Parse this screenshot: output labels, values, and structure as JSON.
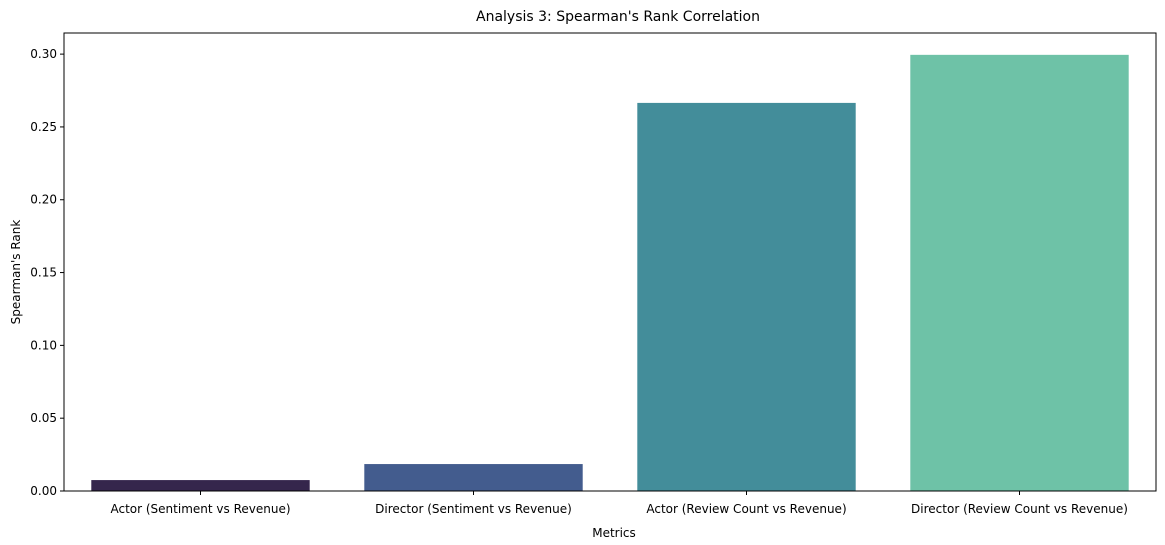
{
  "chart_data": {
    "type": "bar",
    "title": "Analysis 3: Spearman's Rank Correlation",
    "xlabel": "Metrics",
    "ylabel": "Spearman's Rank",
    "categories": [
      "Actor (Sentiment vs Revenue)",
      "Director (Sentiment vs Revenue)",
      "Actor (Review Count vs Revenue)",
      "Director (Review Count vs Revenue)"
    ],
    "values": [
      0.0075,
      0.0185,
      0.2665,
      0.2995
    ],
    "colors": [
      "#35264c",
      "#435c8e",
      "#438d9a",
      "#6ec2a7"
    ],
    "ylim": [
      0,
      0.3145
    ],
    "yticks": [
      0.0,
      0.05,
      0.1,
      0.15,
      0.2,
      0.25,
      0.3
    ],
    "ytick_labels": [
      "0.00",
      "0.05",
      "0.10",
      "0.15",
      "0.20",
      "0.25",
      "0.30"
    ],
    "grid": false,
    "legend": "none"
  }
}
